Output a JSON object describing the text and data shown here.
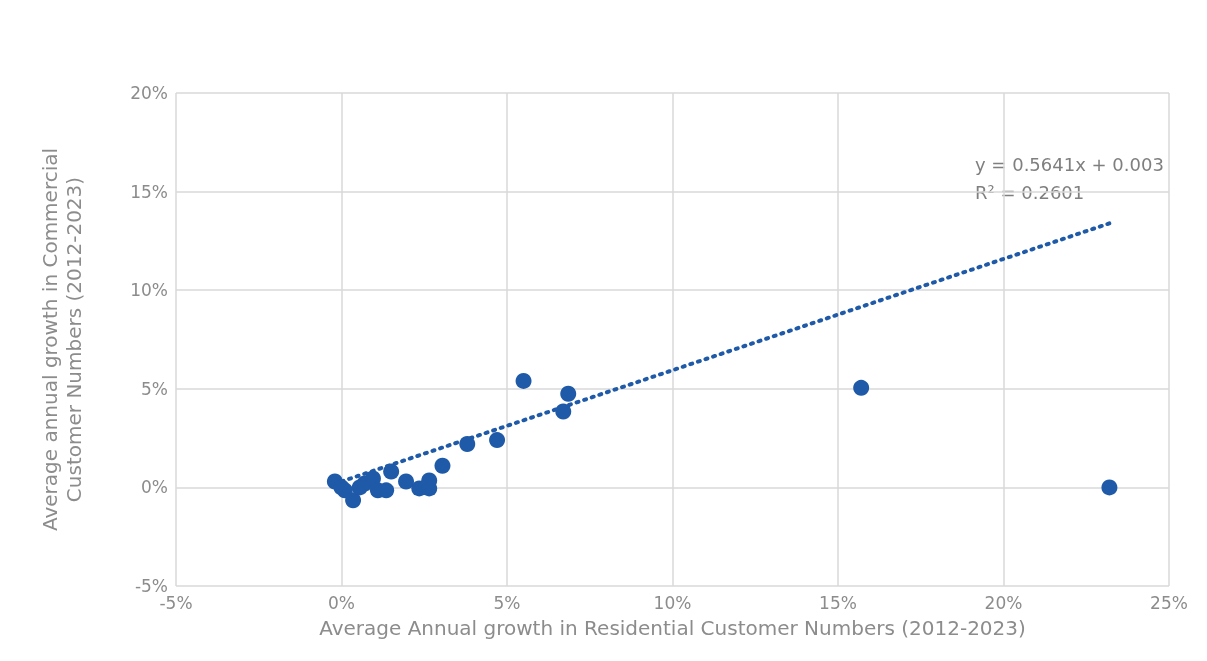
{
  "chart_data": {
    "type": "scatter",
    "xlabel": "Average Annual growth in Residential Customer Numbers (2012-2023)",
    "ylabel": "Average annual growth in Commercial Customer Numbers (2012-2023)",
    "xlim": [
      -5,
      25
    ],
    "xticks": [
      {
        "value": -5,
        "label": "-5%"
      },
      {
        "value": 0,
        "label": "0%"
      },
      {
        "value": 5,
        "label": "5%"
      },
      {
        "value": 10,
        "label": "10%"
      },
      {
        "value": 15,
        "label": "15%"
      },
      {
        "value": 20,
        "label": "20%"
      },
      {
        "value": 25,
        "label": "25%"
      }
    ],
    "ylim": [
      -5,
      20
    ],
    "yticks": [
      {
        "value": -5,
        "label": "-5%"
      },
      {
        "value": 0,
        "label": "0%"
      },
      {
        "value": 5,
        "label": "5%"
      },
      {
        "value": 10,
        "label": "10%"
      },
      {
        "value": 15,
        "label": "15%"
      },
      {
        "value": 20,
        "label": "20%"
      }
    ],
    "grid": true,
    "marker": "circle",
    "annotations": [
      "y = 0.5641x + 0.003",
      "R² = 0.2601"
    ],
    "series": [
      {
        "color": "#1f5aa8",
        "x": [
          -0.2,
          0,
          0.1,
          0.35,
          0.55,
          0.7,
          0.95,
          1.1,
          1.35,
          1.5,
          1.95,
          2.35,
          2.65,
          2.65,
          3.05,
          3.8,
          4.7,
          5.5,
          6.7,
          6.85,
          15.7,
          23.2
        ],
        "values": [
          0.3,
          0,
          -0.15,
          -0.65,
          0,
          0.2,
          0.45,
          -0.15,
          -0.15,
          0.8,
          0.3,
          -0.05,
          -0.05,
          0.35,
          1.1,
          2.2,
          2.4,
          5.4,
          3.85,
          4.75,
          5.05,
          0
        ]
      },
      {
        "type": "line",
        "color": "#1f5aa8",
        "line_style": "dotted",
        "marker": "none",
        "x": [
          0,
          23.2
        ],
        "values": [
          0.3,
          13.39
        ]
      }
    ]
  }
}
